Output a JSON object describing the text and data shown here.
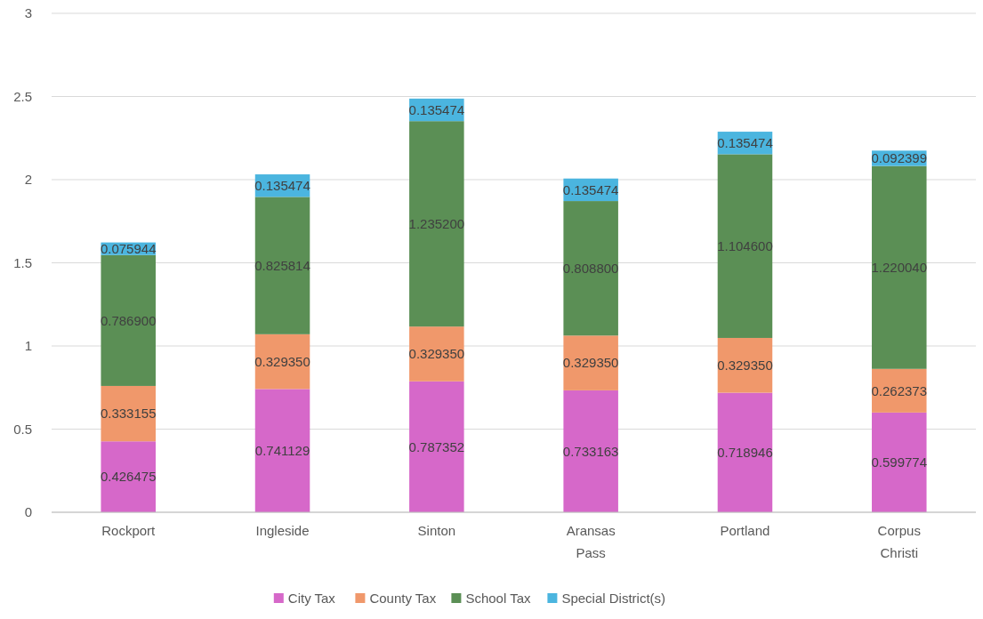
{
  "chart_data": {
    "type": "bar",
    "stacked": true,
    "categories": [
      "Rockport",
      "Ingleside",
      "Sinton",
      "Aransas Pass",
      "Portland",
      "Corpus Christi"
    ],
    "series": [
      {
        "name": "City Tax",
        "color": "#d668c9",
        "values": [
          0.426475,
          0.741129,
          0.787352,
          0.733163,
          0.718946,
          0.599774
        ],
        "value_labels": [
          "0.426475",
          "0.741129",
          "0.787352",
          "0.733163",
          "0.718946",
          "0.599774"
        ]
      },
      {
        "name": "County Tax",
        "color": "#f0986b",
        "values": [
          0.333155,
          0.32935,
          0.32935,
          0.32935,
          0.32935,
          0.262373
        ],
        "value_labels": [
          "0.333155",
          "0.329350",
          "0.329350",
          "0.329350",
          "0.329350",
          "0.262373"
        ]
      },
      {
        "name": "School Tax",
        "color": "#5b8f55",
        "values": [
          0.7869,
          0.825814,
          1.2352,
          0.8088,
          1.1046,
          1.22004
        ],
        "value_labels": [
          "0.786900",
          "0.825814",
          "1.235200",
          "0.808800",
          "1.104600",
          "1.220040"
        ]
      },
      {
        "name": "Special District(s)",
        "color": "#4bb5df",
        "values": [
          0.075944,
          0.135474,
          0.135474,
          0.135474,
          0.135474,
          0.092399
        ],
        "value_labels": [
          "0.075944",
          "0.135474",
          "0.135474",
          "0.135474",
          "0.135474",
          "0.092399"
        ]
      }
    ],
    "ylim": [
      0,
      3
    ],
    "yticks": [
      0,
      0.5,
      1,
      1.5,
      2,
      2.5,
      3
    ],
    "grid": "y",
    "legend": "bottom"
  }
}
